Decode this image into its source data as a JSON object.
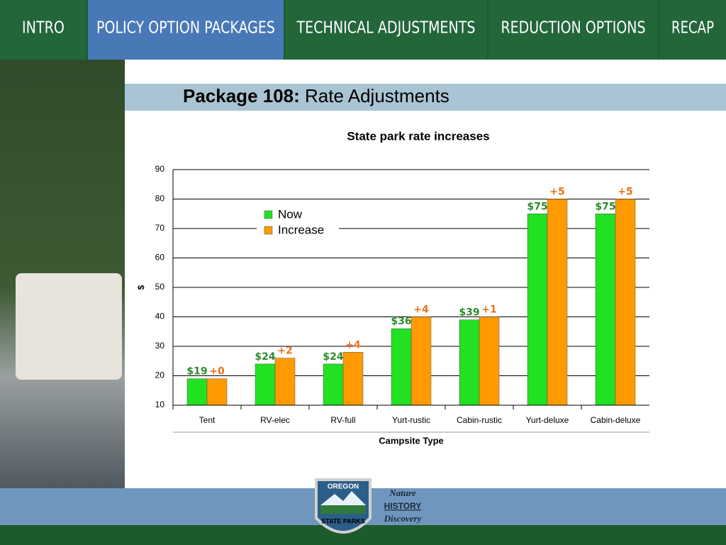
{
  "nav": {
    "tabs": [
      "INTRO",
      "POLICY OPTION PACKAGES",
      "TECHNICAL ADJUSTMENTS",
      "REDUCTION OPTIONS",
      "RECAP"
    ],
    "active": 1
  },
  "header": {
    "label": "Package 108:",
    "title": "Rate Adjustments"
  },
  "chart_data": {
    "type": "bar",
    "title": "State park rate increases",
    "x_label": "Campsite Type",
    "y_label": "$",
    "categories": [
      "Tent",
      "RV-elec",
      "RV-full",
      "Yurt-rustic",
      "Cabin-rustic",
      "Yurt-deluxe",
      "Cabin-deluxe"
    ],
    "series": [
      {
        "name": "Now",
        "color": "#22e022",
        "label_color": "#2e8b2e",
        "values": [
          19,
          24,
          24,
          36,
          39,
          75,
          75
        ],
        "value_labels": [
          "$19",
          "$24",
          "$24",
          "$36",
          "$39",
          "$75",
          "$75"
        ]
      },
      {
        "name": "Increase",
        "color": "#ff9a00",
        "label_color": "#e8701a",
        "values": [
          0,
          2,
          4,
          4,
          1,
          5,
          5
        ],
        "value_labels": [
          "+0",
          "+2",
          "+4",
          "+4",
          "+1",
          "+5",
          "+5"
        ]
      }
    ],
    "ylim": [
      10,
      90
    ],
    "yticks": [
      10,
      20,
      30,
      40,
      50,
      60,
      70,
      80,
      90
    ],
    "grid": true,
    "legend": "upper left"
  },
  "footer": {
    "logo_top": "OREGON",
    "logo_bottom": "STATE PARKS",
    "words": [
      "Nature",
      "HISTORY",
      "Discovery"
    ]
  }
}
